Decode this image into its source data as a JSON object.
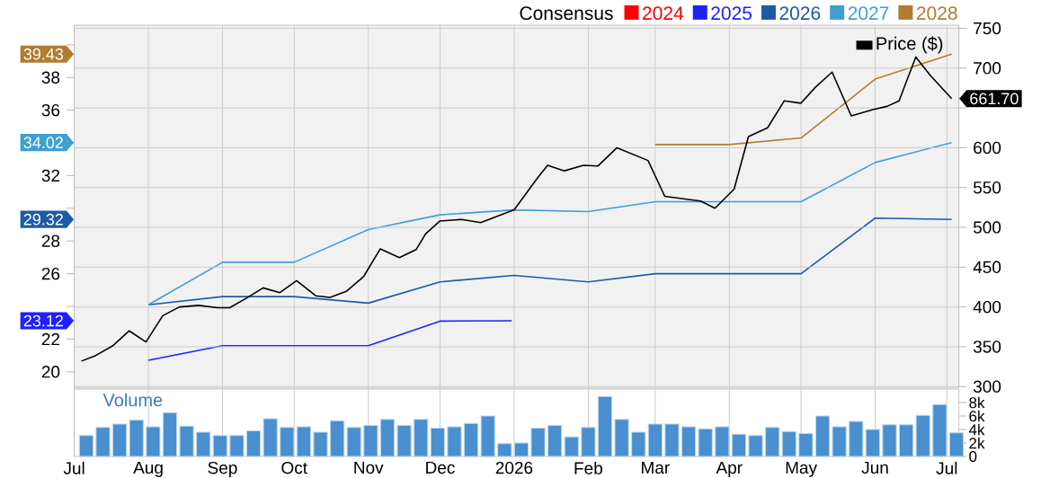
{
  "chart_data": [
    {
      "type": "line",
      "legend_title": "Consensus",
      "annotations": [
        "39.43",
        "34.02",
        "29.32",
        "23.12"
      ],
      "legend": "top",
      "grid": true,
      "tick_labels": "y",
      "marker": "none",
      "line_style": "solid",
      "xlim": [
        "2025-07-01",
        "2026-07-06"
      ],
      "xticks": [
        {
          "value": "2025-07-01",
          "label": null
        },
        {
          "value": "2025-08-01",
          "label": null
        },
        {
          "value": "2025-09-01",
          "label": null
        },
        {
          "value": "2025-10-01",
          "label": null
        },
        {
          "value": "2025-11-01",
          "label": null
        },
        {
          "value": "2025-12-01",
          "label": null
        },
        {
          "value": "2026-01-01",
          "label": null
        },
        {
          "value": "2026-02-01",
          "label": null
        },
        {
          "value": "2026-03-01",
          "label": null
        },
        {
          "value": "2026-04-01",
          "label": null
        },
        {
          "value": "2026-05-01",
          "label": null
        },
        {
          "value": "2026-06-01",
          "label": null
        },
        {
          "value": "2026-07-01",
          "label": null
        }
      ],
      "ylim": [
        19,
        41.2
      ],
      "yticks": [
        20,
        22,
        {
          "value": 24,
          "label": null
        },
        26,
        28,
        {
          "value": 30,
          "label": null
        },
        32,
        {
          "value": 34,
          "label": null
        },
        36,
        38,
        {
          "value": 40,
          "label": null
        }
      ],
      "y2lim": [
        298,
        754
      ],
      "y2ticks": [
        300,
        350,
        400,
        450,
        500,
        550,
        600,
        {
          "value": 650,
          "label": null
        },
        700,
        750
      ],
      "series": [
        {
          "name": "2024",
          "color": "#ff0000"
        },
        {
          "name": "2025",
          "color": "#2020ff",
          "x": [
            "2025-08-01",
            "2025-09-01",
            "2025-11-01",
            "2025-12-01",
            "2025-12-31"
          ],
          "values": [
            20.7,
            21.6,
            21.6,
            23.1,
            23.12
          ]
        },
        {
          "name": "2026",
          "color": "#1e5aa8",
          "x": [
            "2025-08-01",
            "2025-09-01",
            "2025-10-01",
            "2025-11-01",
            "2025-12-01",
            "2026-01-01",
            "2026-02-01",
            "2026-03-01",
            "2026-05-01",
            "2026-06-01",
            "2026-07-03"
          ],
          "values": [
            24.1,
            24.6,
            24.6,
            24.2,
            25.5,
            25.9,
            25.5,
            26.0,
            26.0,
            29.4,
            29.32
          ]
        },
        {
          "name": "2027",
          "color": "#3ea0d0",
          "x": [
            "2025-08-01",
            "2025-09-01",
            "2025-10-01",
            "2025-11-01",
            "2025-12-01",
            "2026-01-01",
            "2026-02-01",
            "2026-03-01",
            "2026-05-01",
            "2026-06-01",
            "2026-07-03"
          ],
          "values": [
            24.1,
            26.7,
            26.7,
            28.7,
            29.6,
            29.9,
            29.8,
            30.4,
            30.4,
            32.8,
            34.02
          ]
        },
        {
          "name": "2028",
          "color": "#b07d2e",
          "x": [
            "2026-03-01",
            "2026-04-01",
            "2026-05-01",
            "2026-06-01",
            "2026-07-03"
          ],
          "values": [
            33.9,
            33.9,
            34.3,
            37.9,
            39.43
          ]
        },
        {
          "name": "Price ($)",
          "color": "#000000",
          "axis": "y2",
          "x": [
            "2025-07-04",
            "2025-07-10",
            "2025-07-17",
            "2025-07-24",
            "2025-07-31",
            "2025-08-07",
            "2025-08-14",
            "2025-08-22",
            "2025-08-30",
            "2025-09-04",
            "2025-09-11",
            "2025-09-18",
            "2025-09-25",
            "2025-10-02",
            "2025-10-10",
            "2025-10-16",
            "2025-10-23",
            "2025-10-30",
            "2025-11-06",
            "2025-11-14",
            "2025-11-21",
            "2025-11-25",
            "2025-12-01",
            "2025-12-10",
            "2025-12-18",
            "2026-01-01",
            "2026-01-11",
            "2026-01-15",
            "2026-01-22",
            "2026-01-30",
            "2026-02-05",
            "2026-02-13",
            "2026-02-26",
            "2026-03-05",
            "2026-03-20",
            "2026-03-26",
            "2026-04-03",
            "2026-04-09",
            "2026-04-17",
            "2026-04-24",
            "2026-05-01",
            "2026-05-07",
            "2026-05-14",
            "2026-05-22",
            "2026-05-31",
            "2026-06-06",
            "2026-06-11",
            "2026-06-18",
            "2026-06-24",
            "2026-07-03"
          ],
          "values": [
            332,
            339,
            351,
            370,
            356,
            389,
            400,
            402,
            399,
            399,
            411,
            424,
            418,
            433,
            414,
            412,
            420,
            438,
            473,
            462,
            472,
            492,
            508,
            510,
            506,
            522,
            563,
            578,
            571,
            578,
            577,
            600,
            584,
            539,
            533,
            524,
            548,
            614,
            625,
            659,
            656,
            676,
            695,
            640,
            648,
            652,
            659,
            714,
            691,
            661.7
          ],
          "value_labels": [
            null,
            null,
            null,
            null,
            null,
            null,
            null,
            null,
            null,
            null,
            null,
            null,
            null,
            null,
            null,
            null,
            null,
            null,
            null,
            null,
            null,
            null,
            null,
            null,
            null,
            null,
            null,
            null,
            null,
            null,
            null,
            null,
            null,
            null,
            null,
            null,
            null,
            null,
            null,
            null,
            null,
            null,
            null,
            null,
            null,
            null,
            null,
            null,
            null,
            "661.70"
          ]
        }
      ]
    },
    {
      "type": "bar",
      "title": "Volume",
      "color": "#4a8fcf",
      "grid": "x",
      "xlim": [
        "2025-07-01",
        "2026-07-06"
      ],
      "xticks": [
        {
          "value": "2025-07-01",
          "label": "Jul"
        },
        {
          "value": "2025-08-01",
          "label": "Aug"
        },
        {
          "value": "2025-09-01",
          "label": "Sep"
        },
        {
          "value": "2025-10-01",
          "label": "Oct"
        },
        {
          "value": "2025-11-01",
          "label": "Nov"
        },
        {
          "value": "2025-12-01",
          "label": "Dec"
        },
        {
          "value": "2026-01-01",
          "label": "2026"
        },
        {
          "value": "2026-02-01",
          "label": "Feb"
        },
        {
          "value": "2026-03-01",
          "label": "Mar"
        },
        {
          "value": "2026-04-01",
          "label": "Apr"
        },
        {
          "value": "2026-05-01",
          "label": "May"
        },
        {
          "value": "2026-06-01",
          "label": "Jun"
        },
        {
          "value": "2026-07-01",
          "label": "Jul"
        }
      ],
      "ylim": [
        0,
        10000
      ],
      "yticks": [
        0,
        {
          "value": 2000,
          "label": "2k"
        },
        {
          "value": 4000,
          "label": "4k"
        },
        {
          "value": 6000,
          "label": "6k"
        },
        {
          "value": 8000,
          "label": "8k"
        }
      ],
      "x": [
        "2025-07-06",
        "2025-07-13",
        "2025-07-20",
        "2025-07-27",
        "2025-08-03",
        "2025-08-10",
        "2025-08-17",
        "2025-08-24",
        "2025-08-31",
        "2025-09-07",
        "2025-09-14",
        "2025-09-21",
        "2025-09-28",
        "2025-10-05",
        "2025-10-12",
        "2025-10-19",
        "2025-10-26",
        "2025-11-02",
        "2025-11-09",
        "2025-11-16",
        "2025-11-23",
        "2025-11-30",
        "2025-12-07",
        "2025-12-14",
        "2025-12-21",
        "2025-12-28",
        "2026-01-04",
        "2026-01-11",
        "2026-01-18",
        "2026-01-25",
        "2026-02-01",
        "2026-02-08",
        "2026-02-15",
        "2026-02-22",
        "2026-03-01",
        "2026-03-08",
        "2026-03-15",
        "2026-03-22",
        "2026-03-29",
        "2026-04-05",
        "2026-04-12",
        "2026-04-19",
        "2026-04-26",
        "2026-05-03",
        "2026-05-10",
        "2026-05-17",
        "2026-05-24",
        "2026-05-31",
        "2026-06-07",
        "2026-06-14",
        "2026-06-21",
        "2026-06-28",
        "2026-07-05"
      ],
      "values": [
        3100,
        4300,
        4800,
        5400,
        4400,
        6500,
        4500,
        3600,
        3100,
        3100,
        3800,
        5600,
        4300,
        4400,
        3600,
        5300,
        4300,
        4600,
        5500,
        4600,
        5500,
        4200,
        4400,
        4900,
        6000,
        1900,
        2000,
        4200,
        4600,
        2900,
        4300,
        8900,
        5500,
        3600,
        4800,
        4800,
        4400,
        4100,
        4400,
        3300,
        3100,
        4300,
        3700,
        3400,
        6000,
        4400,
        5200,
        4000,
        4700,
        4700,
        6100,
        7700,
        3500
      ]
    }
  ]
}
